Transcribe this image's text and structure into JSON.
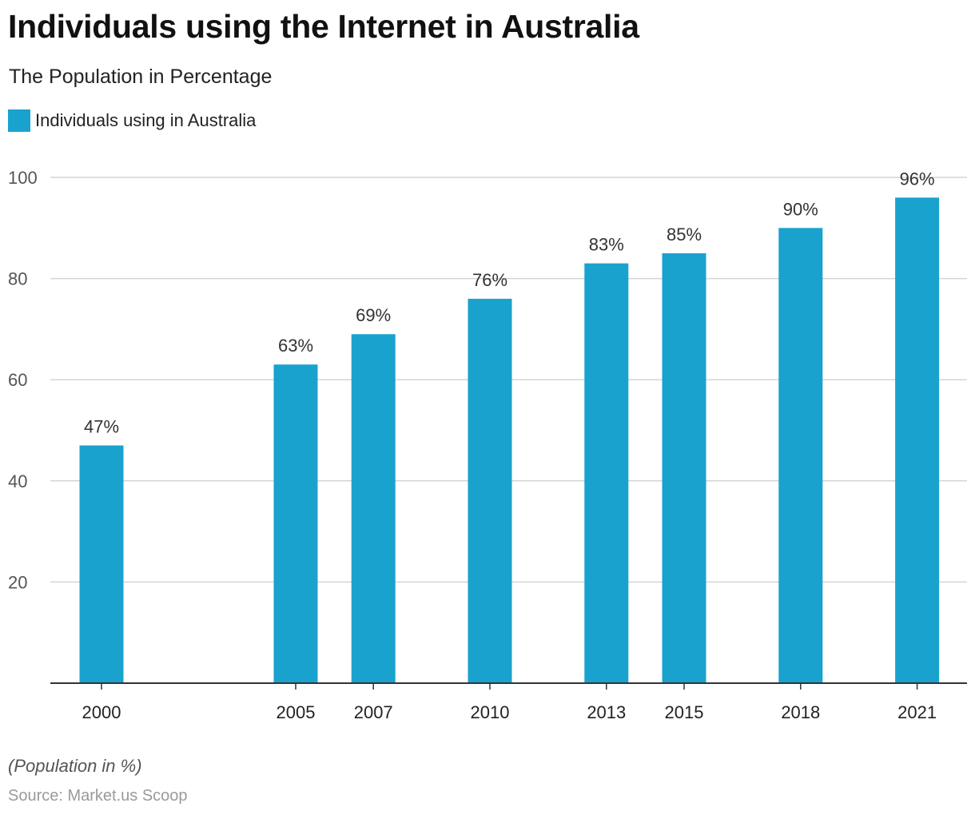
{
  "chart_data": {
    "type": "bar",
    "title": "Individuals using the Internet in Australia",
    "subtitle": "The Population in Percentage",
    "categories": [
      "2000",
      "2005",
      "2007",
      "2010",
      "2013",
      "2015",
      "2018",
      "2021"
    ],
    "x": [
      2000,
      2005,
      2007,
      2010,
      2013,
      2015,
      2018,
      2021
    ],
    "series": [
      {
        "name": "Individuals using in Australia",
        "values": [
          47,
          63,
          69,
          76,
          83,
          85,
          90,
          96
        ],
        "labels": [
          "47%",
          "63%",
          "69%",
          "76%",
          "83%",
          "85%",
          "90%",
          "96%"
        ],
        "color": "#1aa2cf"
      }
    ],
    "ylim": [
      0,
      100
    ],
    "yticks": [
      20,
      40,
      60,
      80,
      100
    ],
    "xlabel": "",
    "ylabel": "",
    "grid": true,
    "legend": "top-left"
  },
  "footnote": "(Population in %)",
  "source": "Source: Market.us Scoop",
  "colors": {
    "bar": "#1aa2cf",
    "grid": "#d4d4d4",
    "axis": "#333333",
    "tick_text": "#555555",
    "label_text": "#333333"
  }
}
